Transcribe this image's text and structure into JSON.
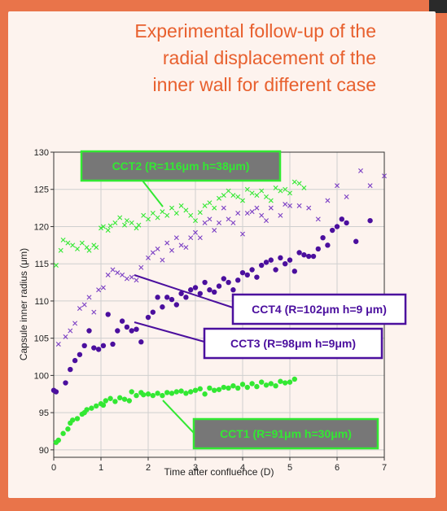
{
  "heading": {
    "line1": "Experimental follow-up of the",
    "line2": "radial displacement of the",
    "line3": "inner wall for different case"
  },
  "colors": {
    "background": "#e9744a",
    "heading": "#e8602e",
    "green": "#33e833",
    "purple": "#4b0f9e",
    "purple_light": "#7b3fc4"
  },
  "chart_data": {
    "type": "scatter",
    "xlabel": "Time after confluence (D)",
    "ylabel": "Capsule inner radius (μm)",
    "xlim": [
      0,
      7
    ],
    "ylim": [
      89,
      130
    ],
    "xticks": [
      "0",
      "1",
      "2",
      "3",
      "4",
      "5",
      "6",
      "7"
    ],
    "yticks": [
      "90",
      "95",
      "100",
      "105",
      "110",
      "115",
      "120",
      "125",
      "130"
    ],
    "grid": true,
    "series": [
      {
        "name": "CCT1 (R=91μm h=30μm)",
        "color": "#33e833",
        "marker": "dot",
        "x": [
          0.05,
          0.1,
          0.2,
          0.3,
          0.35,
          0.4,
          0.5,
          0.6,
          0.65,
          0.7,
          0.8,
          0.9,
          1.0,
          1.05,
          1.1,
          1.2,
          1.3,
          1.4,
          1.5,
          1.6,
          1.65,
          1.75,
          1.85,
          1.9,
          2.0,
          2.1,
          2.2,
          2.3,
          2.4,
          2.5,
          2.6,
          2.7,
          2.8,
          2.9,
          3.0,
          3.1,
          3.2,
          3.3,
          3.4,
          3.5,
          3.6,
          3.7,
          3.8,
          3.9,
          4.0,
          4.1,
          4.2,
          4.3,
          4.4,
          4.5,
          4.6,
          4.7,
          4.8,
          4.9,
          5.0,
          5.1
        ],
        "y": [
          91,
          91.3,
          92.2,
          92.8,
          93.6,
          94.0,
          94.2,
          94.8,
          95.0,
          95.4,
          95.6,
          95.9,
          96.2,
          96.0,
          96.6,
          96.9,
          96.5,
          97.0,
          96.8,
          96.6,
          97.8,
          97.3,
          97.7,
          97.4,
          97.5,
          97.3,
          97.6,
          97.3,
          97.7,
          97.6,
          97.8,
          97.9,
          97.6,
          97.8,
          98.0,
          98.2,
          97.5,
          98.3,
          98.0,
          98.1,
          98.4,
          98.3,
          98.6,
          98.3,
          98.8,
          98.4,
          98.9,
          98.5,
          99.1,
          98.7,
          98.9,
          98.6,
          99.2,
          99.0,
          99.1,
          99.5
        ]
      },
      {
        "name": "CCT2 (R=116μm h=38μm)",
        "color": "#33e833",
        "marker": "cross",
        "x": [
          0.05,
          0.15,
          0.2,
          0.3,
          0.4,
          0.5,
          0.6,
          0.7,
          0.75,
          0.85,
          0.9,
          1.0,
          1.05,
          1.15,
          1.2,
          1.3,
          1.4,
          1.5,
          1.55,
          1.65,
          1.75,
          1.8,
          1.9,
          2.0,
          2.1,
          2.2,
          2.3,
          2.4,
          2.5,
          2.6,
          2.7,
          2.8,
          2.9,
          3.0,
          3.1,
          3.2,
          3.3,
          3.4,
          3.5,
          3.6,
          3.7,
          3.8,
          3.9,
          4.0,
          4.1,
          4.2,
          4.3,
          4.4,
          4.5,
          4.6,
          4.7,
          4.8,
          4.9,
          5.0,
          5.1,
          5.2,
          5.3
        ],
        "y": [
          114.8,
          116.8,
          118.2,
          117.8,
          117.5,
          117.0,
          117.8,
          117.2,
          116.8,
          117.5,
          117.2,
          119.8,
          120.0,
          119.5,
          120.1,
          120.5,
          121.2,
          120.2,
          120.8,
          120.5,
          119.8,
          120.2,
          121.5,
          121.0,
          121.8,
          121.2,
          122.0,
          121.5,
          122.5,
          121.8,
          122.8,
          122.2,
          121.5,
          120.8,
          121.9,
          122.8,
          123.2,
          122.5,
          123.8,
          124.2,
          124.8,
          124.2,
          124.0,
          123.5,
          125.0,
          124.5,
          124.2,
          124.8,
          124.0,
          123.5,
          125.2,
          124.8,
          125.0,
          124.5,
          126.0,
          125.8,
          125.2
        ]
      },
      {
        "name": "CCT3 (R=98μm h=9μm)",
        "color": "#4b0f9e",
        "marker": "dot",
        "x": [
          0.0,
          0.05,
          0.25,
          0.35,
          0.45,
          0.55,
          0.65,
          0.75,
          0.85,
          0.95,
          1.05,
          1.15,
          1.25,
          1.35,
          1.45,
          1.55,
          1.65,
          1.75,
          1.85,
          2.0,
          2.1,
          2.2,
          2.3,
          2.4,
          2.5,
          2.6,
          2.7,
          2.8,
          2.9,
          3.0,
          3.1,
          3.2,
          3.3,
          3.4,
          3.5,
          3.6,
          3.7,
          3.8,
          3.9,
          4.0,
          4.1,
          4.2,
          4.3,
          4.4,
          4.5,
          4.6,
          4.7,
          4.8,
          4.9,
          5.0,
          5.1,
          5.2,
          5.3,
          5.4,
          5.5,
          5.6,
          5.7,
          5.8,
          5.9,
          6.0,
          6.1,
          6.2,
          6.4,
          6.7
        ],
        "y": [
          98.0,
          97.8,
          99.0,
          100.8,
          102.0,
          102.8,
          104.0,
          106.0,
          103.7,
          103.5,
          104.0,
          108.2,
          104.2,
          106.0,
          107.3,
          106.5,
          106.0,
          106.2,
          104.5,
          107.8,
          108.5,
          110.5,
          109.2,
          110.5,
          110.2,
          109.5,
          111.0,
          110.5,
          111.5,
          111.8,
          111.0,
          112.5,
          111.5,
          111.2,
          112.0,
          113.0,
          112.5,
          111.5,
          112.8,
          113.8,
          113.5,
          114.2,
          113.2,
          114.8,
          115.2,
          115.5,
          114.2,
          115.8,
          115.0,
          115.5,
          114.0,
          116.5,
          116.2,
          116.0,
          116.0,
          117.0,
          118.5,
          117.5,
          119.5,
          120.0,
          121.0,
          120.5,
          118.0,
          120.8
        ]
      },
      {
        "name": "CCT4 (R=102μm h=9 μm)",
        "color": "#7b3fc4",
        "marker": "cross",
        "x": [
          0.1,
          0.25,
          0.35,
          0.45,
          0.55,
          0.65,
          0.75,
          0.85,
          0.95,
          1.05,
          1.15,
          1.25,
          1.35,
          1.45,
          1.55,
          1.65,
          1.75,
          1.85,
          2.0,
          2.1,
          2.2,
          2.3,
          2.4,
          2.5,
          2.6,
          2.7,
          2.8,
          2.9,
          3.0,
          3.1,
          3.2,
          3.3,
          3.4,
          3.5,
          3.6,
          3.7,
          3.8,
          3.9,
          4.0,
          4.1,
          4.2,
          4.3,
          4.4,
          4.5,
          4.6,
          4.8,
          4.9,
          5.0,
          5.2,
          5.4,
          5.6,
          5.8,
          6.0,
          6.2,
          6.5,
          6.7,
          7.0
        ],
        "y": [
          104.2,
          105.2,
          106.0,
          107.0,
          109.0,
          109.5,
          110.5,
          108.5,
          111.5,
          111.8,
          113.5,
          114.2,
          113.8,
          113.5,
          113.0,
          113.2,
          112.8,
          114.5,
          115.8,
          116.5,
          117.0,
          115.5,
          117.8,
          116.8,
          118.5,
          117.5,
          117.2,
          118.5,
          119.2,
          118.5,
          120.5,
          121.0,
          119.5,
          120.5,
          122.5,
          121.0,
          120.5,
          121.8,
          119.0,
          121.8,
          122.0,
          122.5,
          121.5,
          120.8,
          122.5,
          121.5,
          123.0,
          122.8,
          122.8,
          122.5,
          121.0,
          123.5,
          125.5,
          124.0,
          127.5,
          125.5,
          126.8
        ]
      }
    ],
    "annotations": [
      {
        "text": "CCT2 (R=116μm h=38μm)",
        "box": "#777777",
        "border": "#33e833",
        "color": "#33e833"
      },
      {
        "text": "CCT4 (R=102μm h=9 μm)",
        "box": "#ffffff",
        "border": "#4b0f9e",
        "color": "#4b0f9e"
      },
      {
        "text": "CCT3 (R=98μm h=9μm)",
        "box": "#ffffff",
        "border": "#4b0f9e",
        "color": "#4b0f9e"
      },
      {
        "text": "CCT1 (R=91μm h=30μm)",
        "box": "#777777",
        "border": "#33e833",
        "color": "#33e833"
      }
    ]
  }
}
